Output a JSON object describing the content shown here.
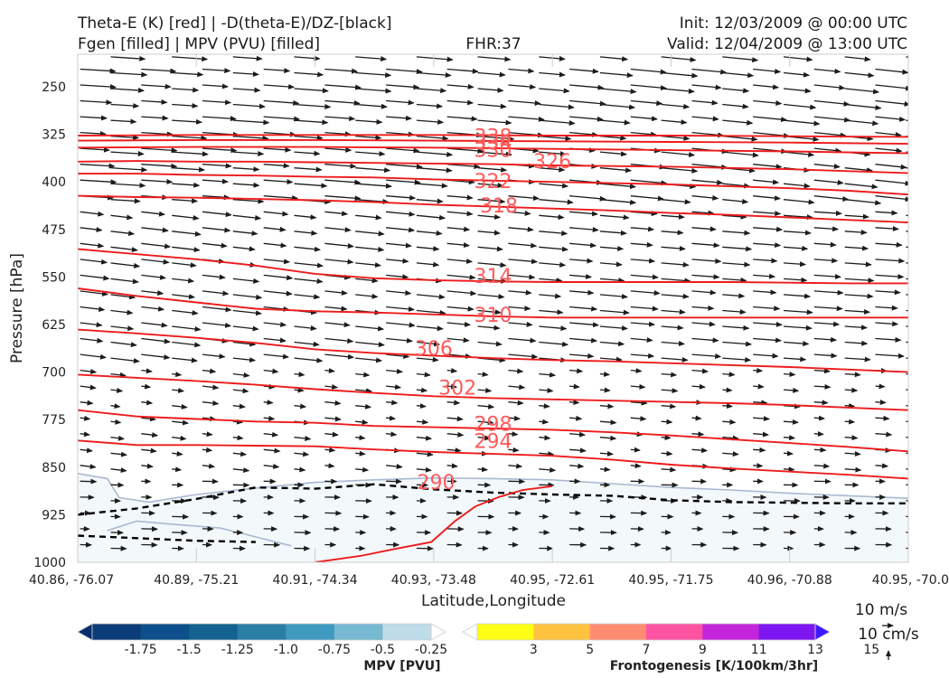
{
  "titles": {
    "line1_left": "Theta-E (K) [red] | -D(theta-E)/DZ-[black]",
    "line2_left": "Fgen [filled] | MPV (PVU) [filled]",
    "fhr": "FHR:37",
    "init": "Init: 12/03/2009 @ 00:00 UTC",
    "valid": "Valid: 12/04/2009 @ 13:00 UTC"
  },
  "chart_data": {
    "type": "cross-section",
    "xlabel": "Latitude,Longitude",
    "ylabel": "Pressure [hPa]",
    "x_ticks": [
      "40.86, -76.07",
      "40.89, -75.21",
      "40.91, -74.34",
      "40.93, -73.48",
      "40.95, -72.61",
      "40.95, -71.75",
      "40.96, -70.88",
      "40.95, -70.0"
    ],
    "xlim": [
      0,
      7
    ],
    "ylim": [
      1000,
      200
    ],
    "y_ticks": [
      250,
      325,
      400,
      475,
      550,
      625,
      700,
      775,
      850,
      925,
      1000
    ],
    "grid": false,
    "theta_e_contours": [
      {
        "label": "290",
        "x": [
          4.0,
          3.75,
          3.55,
          3.35,
          3.18,
          2.98,
          2.7,
          2.38,
          2.0
        ],
        "p": [
          880,
          886,
          897,
          912,
          935,
          968,
          978,
          990,
          1000
        ],
        "label_at": [
          3.02,
          873
        ]
      },
      {
        "label": "294",
        "x": [
          0,
          0.5,
          1.0,
          1.5,
          2.0,
          2.5,
          3.0,
          3.5,
          4.0,
          4.5,
          5.0,
          5.5,
          6.0,
          6.5,
          7.0
        ],
        "p": [
          808,
          815,
          815,
          816,
          817,
          822,
          826,
          829,
          832,
          838,
          846,
          852,
          857,
          862,
          868
        ],
        "label_at": [
          3.5,
          808
        ]
      },
      {
        "label": "298",
        "x": [
          0,
          0.5,
          1.0,
          1.5,
          2.0,
          2.5,
          3.0,
          3.5,
          4.0,
          4.5,
          5.0,
          5.5,
          6.0,
          6.5,
          7.0
        ],
        "p": [
          760,
          770,
          774,
          778,
          780,
          785,
          787,
          789,
          791,
          795,
          800,
          806,
          812,
          818,
          825
        ],
        "label_at": [
          3.5,
          781
        ]
      },
      {
        "label": "302",
        "x": [
          0,
          0.5,
          1.0,
          1.5,
          2.0,
          2.5,
          3.0,
          3.5,
          4.0,
          4.5,
          5.0,
          5.5,
          6.0,
          6.5,
          7.0
        ],
        "p": [
          704,
          709,
          714,
          720,
          727,
          733,
          738,
          741,
          743,
          745,
          747,
          749,
          752,
          756,
          760
        ],
        "label_at": [
          3.2,
          724
        ]
      },
      {
        "label": "306",
        "x": [
          0,
          0.5,
          1.0,
          1.5,
          2.0,
          2.5,
          3.0,
          3.5,
          4.0,
          4.5,
          5.0,
          5.5,
          6.0,
          6.5,
          7.0
        ],
        "p": [
          633,
          639,
          646,
          654,
          664,
          670,
          674,
          678,
          681,
          683,
          686,
          689,
          692,
          696,
          700
        ],
        "label_at": [
          3.0,
          662
        ]
      },
      {
        "label": "310",
        "x": [
          0,
          0.5,
          1.0,
          1.5,
          2.0,
          2.5,
          3.0,
          3.5,
          4.0,
          4.5,
          5.0,
          5.5,
          6.0,
          6.5,
          7.0
        ],
        "p": [
          568,
          580,
          590,
          600,
          604,
          606,
          609,
          612,
          614,
          614,
          614,
          614,
          614,
          614,
          614
        ],
        "label_at": [
          3.5,
          609
        ]
      },
      {
        "label": "314",
        "x": [
          0,
          0.5,
          1.0,
          1.5,
          2.0,
          2.5,
          3.0,
          3.5,
          4.0,
          4.5,
          5.0,
          5.5,
          6.0,
          6.5,
          7.0
        ],
        "p": [
          506,
          514,
          522,
          532,
          545,
          552,
          555,
          557,
          558,
          558,
          558,
          558,
          559,
          560,
          560
        ],
        "label_at": [
          3.5,
          548
        ]
      },
      {
        "label": "318",
        "x": [
          0,
          0.5,
          1.0,
          1.5,
          2.0,
          2.5,
          3.0,
          3.5,
          4.0,
          4.5,
          5.0,
          5.5,
          6.0,
          6.5,
          7.0
        ],
        "p": [
          422,
          424,
          425,
          427,
          429,
          432,
          436,
          439,
          442,
          445,
          449,
          452,
          456,
          460,
          464
        ],
        "label_at": [
          3.55,
          437
        ]
      },
      {
        "label": "322",
        "x": [
          0,
          0.5,
          1.0,
          1.5,
          2.0,
          2.5,
          3.0,
          3.5,
          4.0,
          4.5,
          5.0,
          5.5,
          6.0,
          6.5,
          7.0
        ],
        "p": [
          387,
          387,
          389,
          390,
          392,
          393,
          396,
          398,
          400,
          402,
          404,
          407,
          410,
          414,
          420
        ],
        "label_at": [
          3.5,
          398
        ]
      },
      {
        "label": "326",
        "x": [
          0,
          0.5,
          1.0,
          1.5,
          2.0,
          2.5,
          3.0,
          3.5,
          4.0,
          4.5,
          5.0,
          5.5,
          6.0,
          6.5,
          7.0
        ],
        "p": [
          368,
          367,
          368,
          368,
          369,
          370,
          371,
          372,
          374,
          375,
          376,
          378,
          380,
          383,
          386
        ],
        "label_at": [
          4.0,
          367
        ]
      },
      {
        "label": "330",
        "x": [
          0,
          1.0,
          2.0,
          3.0,
          4.0,
          5.0,
          6.0,
          7.0
        ],
        "p": [
          346,
          345,
          345,
          346,
          348,
          350,
          352,
          355
        ],
        "label_at": [
          3.5,
          349
        ]
      },
      {
        "label": "334",
        "x": [
          0,
          1.0,
          2.0,
          3.0,
          4.0,
          5.0,
          6.0,
          7.0
        ],
        "p": [
          335,
          334,
          334,
          335,
          336,
          337,
          338,
          340
        ],
        "label_at": [
          3.5,
          336
        ]
      },
      {
        "label": "338",
        "x": [
          0,
          1.0,
          2.0,
          3.0,
          4.0,
          5.0,
          6.0,
          7.0
        ],
        "p": [
          327,
          326,
          326,
          326,
          327,
          327,
          328,
          329
        ],
        "label_at": [
          3.5,
          328
        ]
      }
    ],
    "stability_contour_dashed": [
      {
        "x": [
          0,
          0.5,
          1.0,
          1.5,
          2.0,
          2.5,
          3.0,
          3.5,
          4.0,
          4.5,
          5.0,
          5.5,
          6.0,
          6.5,
          7.0
        ],
        "p": [
          925,
          915,
          900,
          882,
          884,
          877,
          885,
          890,
          893,
          895,
          902,
          905,
          906,
          907,
          907
        ]
      },
      {
        "x": [
          0,
          0.5,
          1.0,
          1.5
        ],
        "p": [
          958,
          962,
          966,
          968
        ]
      }
    ],
    "mpv_region_outline": {
      "x": [
        0,
        0.25,
        0.35,
        0.6,
        1.0,
        1.5,
        2.0,
        2.5,
        3.0,
        3.5,
        4.0,
        4.5,
        5.0,
        5.5,
        6.0,
        6.5,
        7.0
      ],
      "p": [
        860,
        868,
        898,
        905,
        893,
        883,
        874,
        870,
        867,
        868,
        870,
        876,
        882,
        886,
        891,
        895,
        899
      ]
    },
    "mpv_inner_outline": {
      "x": [
        0.25,
        0.5,
        0.8,
        1.2,
        1.5,
        1.8
      ],
      "p": [
        950,
        935,
        940,
        946,
        960,
        974
      ]
    },
    "wind_reference": {
      "horizontal": "10 m/s",
      "vertical": "10 cm/s"
    },
    "colorbars": [
      {
        "title": "MPV [PVU]",
        "ticks": [
          "-1.75",
          "-1.5",
          "-1.25",
          "-1.0",
          "-0.75",
          "-0.5",
          "-0.25"
        ],
        "colors": [
          "#08306b",
          "#0b3d7a",
          "#0d4f8b",
          "#13628f",
          "#2b7fa6",
          "#3f9ac0",
          "#76b9d1",
          "#bfdde8",
          "#ffffff"
        ]
      },
      {
        "title": "Frontogenesis [K/100km/3hr]",
        "ticks": [
          "3",
          "5",
          "7",
          "9",
          "11",
          "13",
          "15"
        ],
        "colors": [
          "#ffffff",
          "#ffff16",
          "#ffc240",
          "#ff8c70",
          "#fe52a3",
          "#c425db",
          "#7d16f0",
          "#3e1bfe"
        ]
      }
    ]
  },
  "colors": {
    "theta_e": "#ee1b1b",
    "arrows": "#1c1c1c",
    "mpv_fill": "#f3f8fa",
    "mpv_edge": "#a9b9d3",
    "label": "#ff5a5a"
  }
}
